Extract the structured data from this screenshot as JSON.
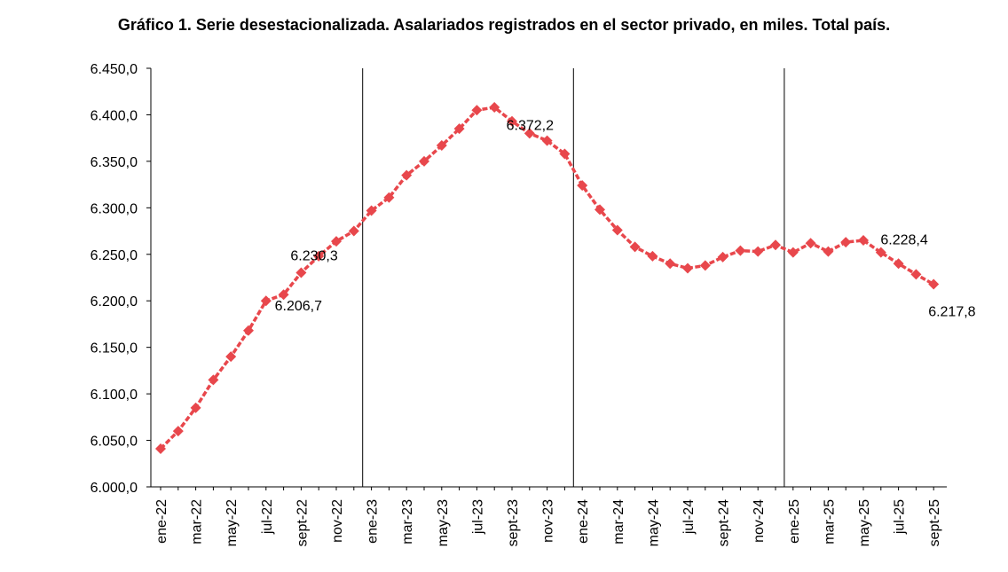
{
  "chart_data": {
    "type": "line",
    "title": "Gráfico 1. Serie desestacionalizada. Asalariados registrados en el sector privado, en miles. Total país.",
    "xlabel": "",
    "ylabel": "",
    "ylim": [
      6000,
      6450
    ],
    "yticks": [
      6000,
      6050,
      6100,
      6150,
      6200,
      6250,
      6300,
      6350,
      6400,
      6450
    ],
    "ytick_labels": [
      "6.000,0",
      "6.050,0",
      "6.100,0",
      "6.150,0",
      "6.200,0",
      "6.250,0",
      "6.300,0",
      "6.350,0",
      "6.400,0",
      "6.450,0"
    ],
    "x_labels": [
      "ene-22",
      "mar-22",
      "may-22",
      "jul-22",
      "sept-22",
      "nov-22",
      "ene-23",
      "mar-23",
      "may-23",
      "jul-23",
      "sept-23",
      "nov-23",
      "ene-24",
      "mar-24",
      "may-24",
      "jul-24",
      "sept-24",
      "nov-24",
      "ene-25",
      "mar-25",
      "may-25",
      "jul-25",
      "sept-25"
    ],
    "x_label_index_step": 2,
    "series": [
      {
        "name": "Asalariados registrados sector privado",
        "color": "#e8474c",
        "values": [
          6041,
          6060,
          6085,
          6115,
          6140,
          6168,
          6200,
          6206.7,
          6230.3,
          6248,
          6264,
          6275,
          6297,
          6311,
          6335,
          6350,
          6367,
          6385,
          6405,
          6408,
          6393,
          6380,
          6372.2,
          6358,
          6324,
          6298,
          6276,
          6258,
          6248,
          6240,
          6235,
          6238,
          6247,
          6254,
          6253,
          6260,
          6252,
          6262,
          6253,
          6263,
          6265,
          6252,
          6240,
          6228.4,
          6217.8
        ]
      }
    ],
    "year_separators_after_index": [
      11,
      23,
      35
    ],
    "annotations": [
      {
        "text": "6.206,7",
        "point_index": 7
      },
      {
        "text": "6.230,3",
        "point_index": 8
      },
      {
        "text": "6.372,2",
        "point_index": 22
      },
      {
        "text": "6.228,4",
        "point_index": 43
      },
      {
        "text": "6.217,8",
        "point_index": 44
      }
    ]
  }
}
